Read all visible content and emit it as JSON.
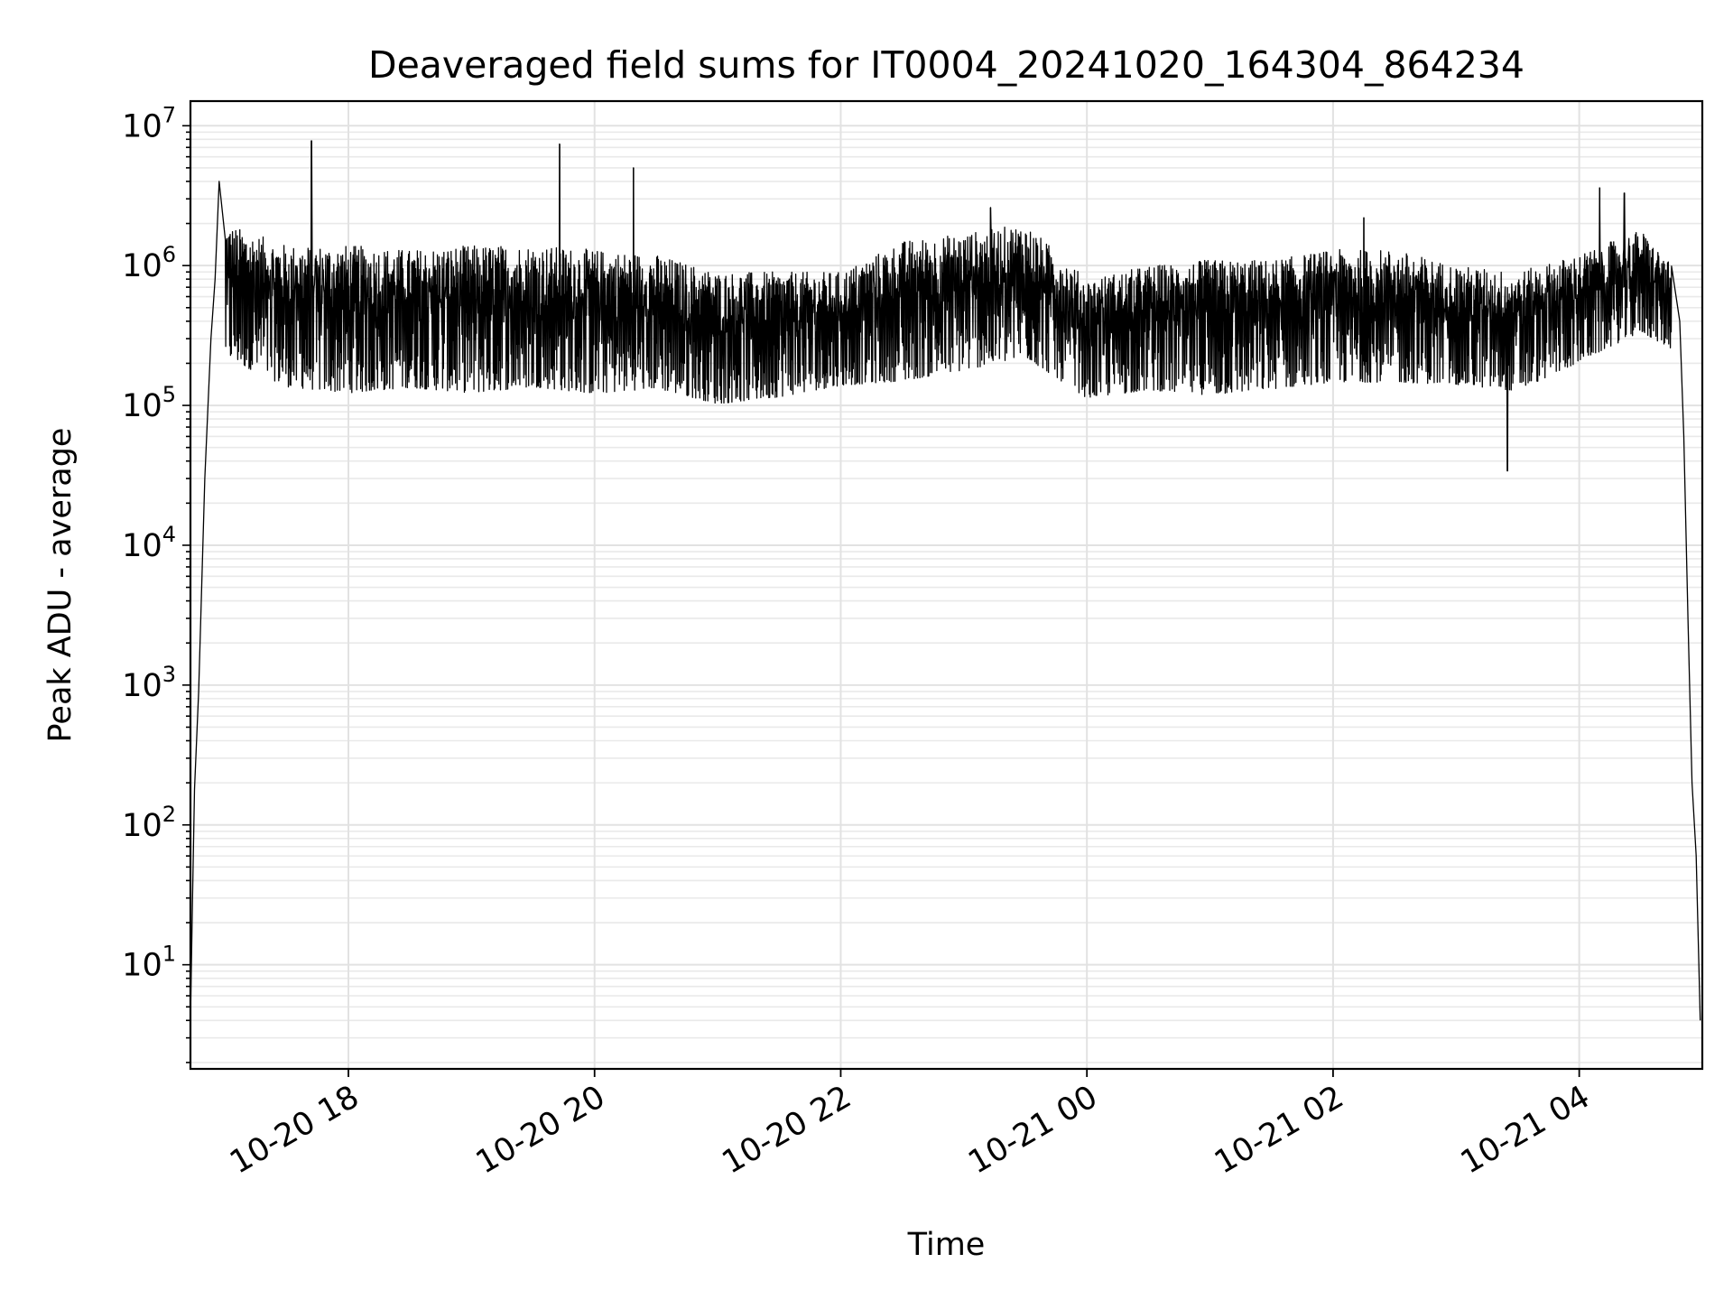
{
  "chart_data": {
    "type": "line",
    "title": "Deaveraged field sums for IT0004_20241020_164304_864234",
    "xlabel": "Time",
    "ylabel": "Peak ADU - average",
    "x_range": [
      "2024-10-20 16:43",
      "2024-10-21 05:00"
    ],
    "y_range": [
      1.8,
      15000000
    ],
    "y_scale": "log",
    "grid": true,
    "x_ticks": [
      {
        "t": "2024-10-20 18:00",
        "label": "10-20 18"
      },
      {
        "t": "2024-10-20 20:00",
        "label": "10-20 20"
      },
      {
        "t": "2024-10-20 22:00",
        "label": "10-20 22"
      },
      {
        "t": "2024-10-21 00:00",
        "label": "10-21 00"
      },
      {
        "t": "2024-10-21 02:00",
        "label": "10-21 02"
      },
      {
        "t": "2024-10-21 04:00",
        "label": "10-21 04"
      }
    ],
    "y_ticks": [
      {
        "value": 10,
        "base": "10",
        "exp": "1"
      },
      {
        "value": 100,
        "base": "10",
        "exp": "2"
      },
      {
        "value": 1000,
        "base": "10",
        "exp": "3"
      },
      {
        "value": 10000,
        "base": "10",
        "exp": "4"
      },
      {
        "value": 100000,
        "base": "10",
        "exp": "5"
      },
      {
        "value": 1000000,
        "base": "10",
        "exp": "6"
      },
      {
        "value": 10000000,
        "base": "10",
        "exp": "7"
      }
    ],
    "series": [
      {
        "color": "#000000",
        "note": "Dense noisy signal; envelope points below approximate the trace (band = typical low/high within each window).",
        "ramp_up": [
          {
            "t": "2024-10-20 16:43",
            "y": 4
          },
          {
            "t": "2024-10-20 16:44",
            "y": 30
          },
          {
            "t": "2024-10-20 16:45",
            "y": 180
          },
          {
            "t": "2024-10-20 16:47",
            "y": 900
          },
          {
            "t": "2024-10-20 16:50",
            "y": 30000
          },
          {
            "t": "2024-10-20 16:53",
            "y": 300000
          },
          {
            "t": "2024-10-20 16:55",
            "y": 800000
          },
          {
            "t": "2024-10-20 16:57",
            "y": 4000000
          }
        ],
        "band": [
          {
            "t": "2024-10-20 17:00",
            "low": 150000,
            "high": 2000000
          },
          {
            "t": "2024-10-20 17:30",
            "low": 90000,
            "high": 1400000
          },
          {
            "t": "2024-10-20 18:00",
            "low": 80000,
            "high": 1400000
          },
          {
            "t": "2024-10-20 18:30",
            "low": 90000,
            "high": 1300000
          },
          {
            "t": "2024-10-20 19:00",
            "low": 80000,
            "high": 1400000
          },
          {
            "t": "2024-10-20 19:30",
            "low": 90000,
            "high": 1400000
          },
          {
            "t": "2024-10-20 20:00",
            "low": 80000,
            "high": 1300000
          },
          {
            "t": "2024-10-20 20:30",
            "low": 90000,
            "high": 1200000
          },
          {
            "t": "2024-10-20 21:00",
            "low": 70000,
            "high": 900000
          },
          {
            "t": "2024-10-20 21:30",
            "low": 80000,
            "high": 900000
          },
          {
            "t": "2024-10-20 22:00",
            "low": 100000,
            "high": 900000
          },
          {
            "t": "2024-10-20 22:30",
            "low": 100000,
            "high": 1500000
          },
          {
            "t": "2024-10-20 23:00",
            "low": 120000,
            "high": 1700000
          },
          {
            "t": "2024-10-20 23:30",
            "low": 150000,
            "high": 2000000
          },
          {
            "t": "2024-10-21 00:00",
            "low": 80000,
            "high": 800000
          },
          {
            "t": "2024-10-21 00:30",
            "low": 90000,
            "high": 1000000
          },
          {
            "t": "2024-10-21 01:00",
            "low": 80000,
            "high": 1100000
          },
          {
            "t": "2024-10-21 01:30",
            "low": 90000,
            "high": 1100000
          },
          {
            "t": "2024-10-21 02:00",
            "low": 100000,
            "high": 1300000
          },
          {
            "t": "2024-10-21 02:30",
            "low": 100000,
            "high": 1300000
          },
          {
            "t": "2024-10-21 03:00",
            "low": 100000,
            "high": 1000000
          },
          {
            "t": "2024-10-21 03:30",
            "low": 90000,
            "high": 900000
          },
          {
            "t": "2024-10-21 04:00",
            "low": 150000,
            "high": 1200000
          },
          {
            "t": "2024-10-21 04:30",
            "low": 250000,
            "high": 1800000
          },
          {
            "t": "2024-10-21 04:45",
            "low": 200000,
            "high": 1000000
          }
        ],
        "spikes": [
          {
            "t": "2024-10-20 17:42",
            "y": 7800000
          },
          {
            "t": "2024-10-20 19:43",
            "y": 7400000
          },
          {
            "t": "2024-10-20 20:19",
            "y": 5000000
          },
          {
            "t": "2024-10-20 23:13",
            "y": 2600000
          },
          {
            "t": "2024-10-21 02:15",
            "y": 2200000
          },
          {
            "t": "2024-10-21 04:10",
            "y": 3600000
          },
          {
            "t": "2024-10-21 04:22",
            "y": 3300000
          },
          {
            "t": "2024-10-21 03:25",
            "y": 34000
          }
        ],
        "ramp_down": [
          {
            "t": "2024-10-21 04:49",
            "y": 400000
          },
          {
            "t": "2024-10-21 04:51",
            "y": 60000
          },
          {
            "t": "2024-10-21 04:53",
            "y": 3000
          },
          {
            "t": "2024-10-21 04:55",
            "y": 200
          },
          {
            "t": "2024-10-21 04:57",
            "y": 60
          },
          {
            "t": "2024-10-21 04:59",
            "y": 4
          }
        ]
      }
    ]
  }
}
